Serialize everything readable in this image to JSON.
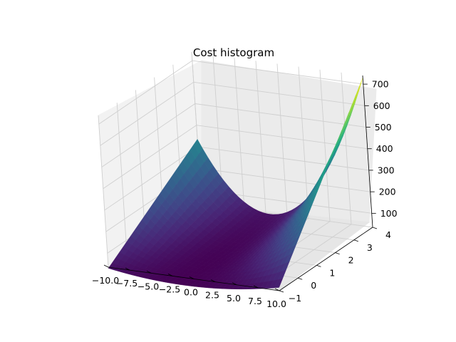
{
  "chart_data": {
    "type": "surface",
    "title": "Cost histogram",
    "xlabel": "",
    "ylabel": "",
    "zlabel": "",
    "x_range": [
      -10,
      10
    ],
    "y_range": [
      -1,
      4
    ],
    "z_range": [
      35,
      740
    ],
    "x_ticks": [
      "−10.0",
      "−7.5",
      "−5.0",
      "−2.5",
      "0.0",
      "2.5",
      "5.0",
      "7.5",
      "10.0"
    ],
    "y_ticks": [
      "−1",
      "0",
      "1",
      "2",
      "3",
      "4"
    ],
    "z_ticks": [
      "100",
      "200",
      "300",
      "400",
      "500",
      "600",
      "700"
    ],
    "x_tick_values": [
      -10,
      -7.5,
      -5,
      -2.5,
      0,
      2.5,
      5,
      7.5,
      10
    ],
    "y_tick_values": [
      -1,
      0,
      1,
      2,
      3,
      4
    ],
    "z_tick_values": [
      100,
      200,
      300,
      400,
      500,
      600,
      700
    ],
    "corner_values": [
      {
        "x": -10,
        "y": -1,
        "z": 30
      },
      {
        "x": 10,
        "y": -1,
        "z": 50
      },
      {
        "x": -10,
        "y": 4,
        "z": 335
      },
      {
        "x": 10,
        "y": 4,
        "z": 730
      }
    ],
    "minimum": {
      "x": 0,
      "y": -1,
      "z": 0
    },
    "colormap": "viridis",
    "grid": true
  }
}
